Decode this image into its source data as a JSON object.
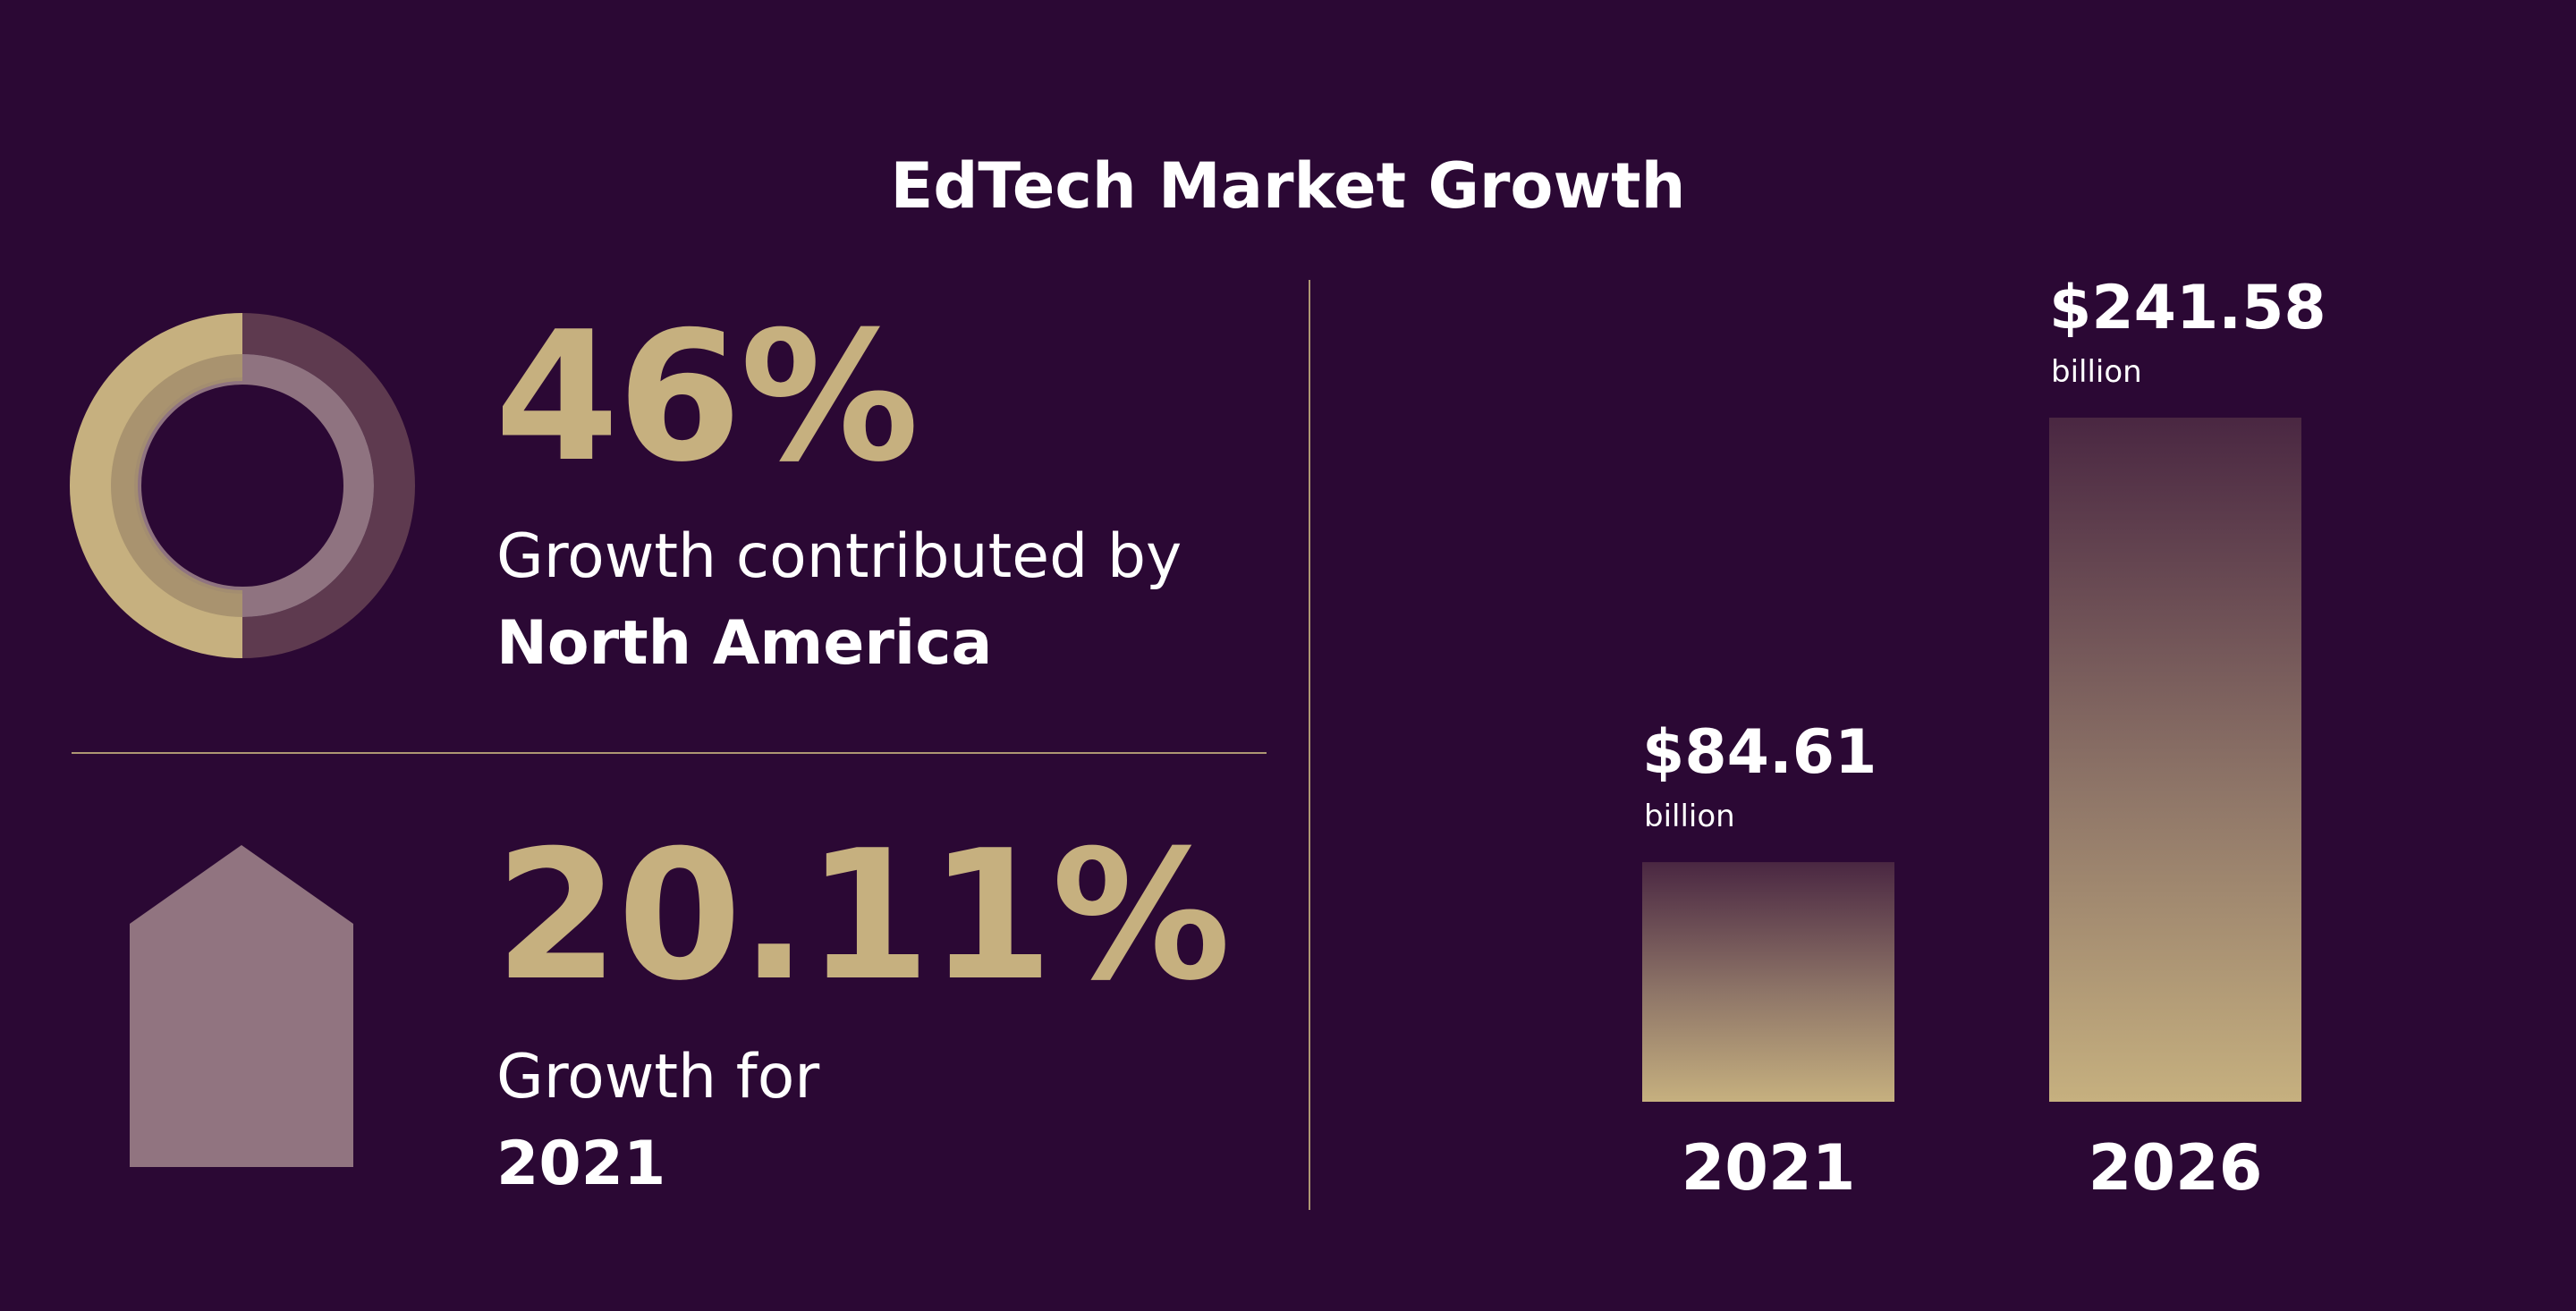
{
  "title": "EdTech Market Growth",
  "stats": [
    {
      "value": "46%",
      "description": "Growth contributed by",
      "highlight": "North America",
      "icon": "donut-icon",
      "ring_fraction": 0.5
    },
    {
      "value": "20.11%",
      "description": "Growth for",
      "highlight": "2021",
      "icon": "house-icon"
    }
  ],
  "colors": {
    "background": "#2b0834",
    "accent": "#c6b07f",
    "muted": "#5e3a4f",
    "rose": "#917480",
    "text": "#ffffff"
  },
  "chart_data": {
    "type": "bar",
    "title": "",
    "xlabel": "",
    "ylabel": "",
    "categories": [
      "2021",
      "2026"
    ],
    "values": [
      84.61,
      241.58
    ],
    "value_labels": [
      "$84.61",
      "$241.58"
    ],
    "unit_label": "billion",
    "ylim": [
      0,
      241.58
    ],
    "grid": false,
    "legend": "none"
  }
}
